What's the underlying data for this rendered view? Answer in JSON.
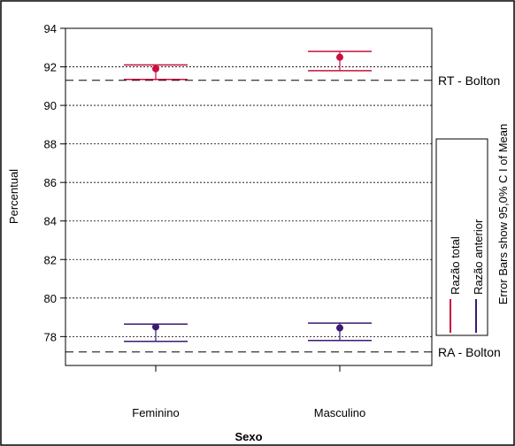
{
  "chart_data": {
    "type": "scatter",
    "title": "",
    "xlabel": "Sexo",
    "ylabel": "Percentual",
    "ylim": [
      76.5,
      94
    ],
    "yticks": [
      78,
      80,
      82,
      84,
      86,
      88,
      90,
      92,
      94
    ],
    "categories": [
      "Feminino",
      "Masculino"
    ],
    "grid": "horizontal-dotted",
    "series": [
      {
        "name": "Razão total",
        "color": "#c8103e",
        "mean": [
          91.9,
          92.5
        ],
        "lower": [
          91.35,
          91.8
        ],
        "upper": [
          92.1,
          92.8
        ]
      },
      {
        "name": "Razão anterior",
        "color": "#3b1a73",
        "mean": [
          78.5,
          78.45
        ],
        "lower": [
          77.75,
          77.8
        ],
        "upper": [
          78.65,
          78.7
        ]
      }
    ],
    "reference_lines": [
      {
        "label": "RT - Bolton",
        "value": 91.3
      },
      {
        "label": "RA - Bolton",
        "value": 77.2
      }
    ],
    "note": "Error Bars show 95,0% C I of Mean"
  }
}
